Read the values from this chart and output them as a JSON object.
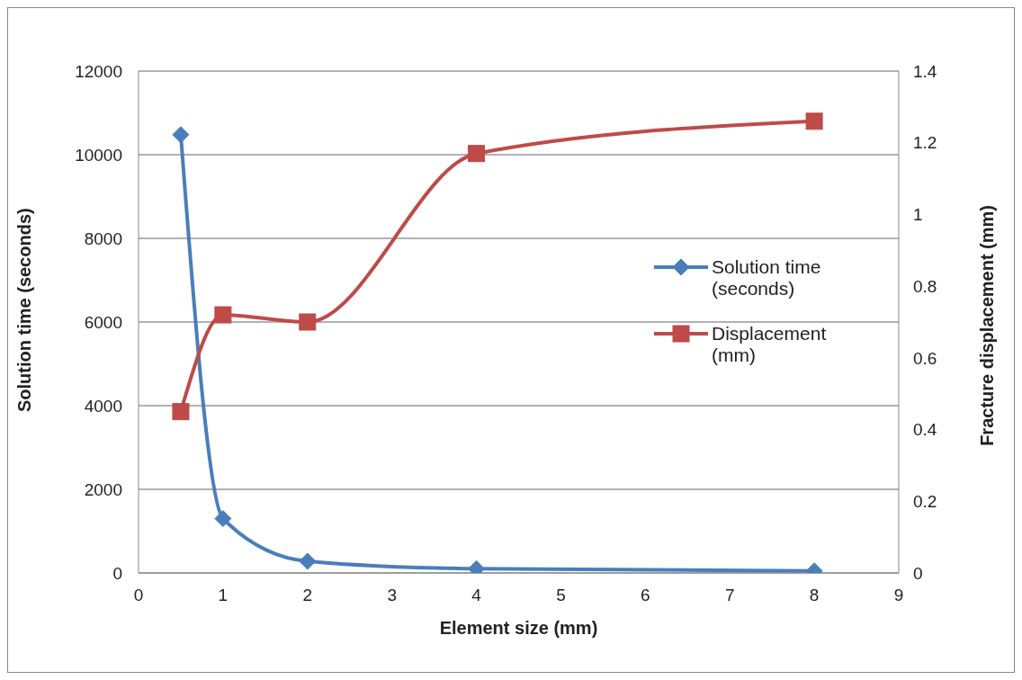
{
  "chart_data": {
    "type": "line",
    "xlabel": "Element size (mm)",
    "ylabel": "Solution time (seconds)",
    "y2label": "Fracture  displacement (mm)",
    "x": [
      0.5,
      1,
      2,
      4,
      8
    ],
    "series": [
      {
        "name": "Solution time (seconds)",
        "color": "#4a7ebb",
        "values": [
          10480,
          1300,
          280,
          100,
          50
        ],
        "marker": "diamond"
      },
      {
        "name": "Displacement (mm)",
        "color": "#be4b48",
        "values": [
          0.45,
          0.72,
          0.7,
          1.17,
          1.26
        ],
        "marker": "square",
        "axis": "y2"
      }
    ],
    "xlim": [
      0,
      9
    ],
    "xticks": [
      0,
      1,
      2,
      3,
      4,
      5,
      6,
      7,
      8,
      9
    ],
    "ylim": [
      0,
      12000
    ],
    "yticks": [
      0,
      2000,
      4000,
      6000,
      8000,
      10000,
      12000
    ],
    "y2lim": [
      0,
      1.4
    ],
    "y2ticks": [
      0,
      0.2,
      0.4,
      0.6,
      0.8,
      1,
      1.2,
      1.4
    ],
    "grid": "y",
    "legend": "right",
    "line_style": "solid"
  }
}
